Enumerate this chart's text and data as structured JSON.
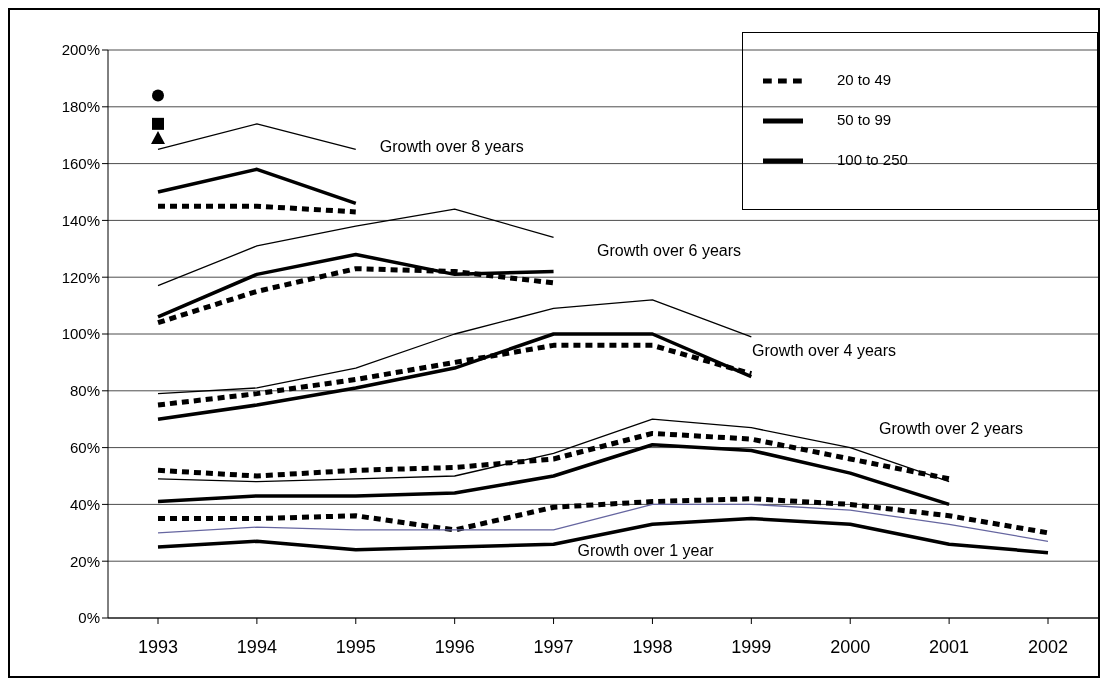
{
  "chart_data": {
    "type": "line",
    "categories": [
      "1993",
      "1994",
      "1995",
      "1996",
      "1997",
      "1998",
      "1999",
      "2000",
      "2001",
      "2002"
    ],
    "ylim": [
      0,
      200
    ],
    "yticks": [
      {
        "value": 0,
        "label": "0%"
      },
      {
        "value": 20,
        "label": "20%"
      },
      {
        "value": 40,
        "label": "40%"
      },
      {
        "value": 60,
        "label": "60%"
      },
      {
        "value": 80,
        "label": "80%"
      },
      {
        "value": 100,
        "label": "100%"
      },
      {
        "value": 120,
        "label": "120%"
      },
      {
        "value": 140,
        "label": "140%"
      },
      {
        "value": 160,
        "label": "160%"
      },
      {
        "value": 180,
        "label": "180%"
      },
      {
        "value": 200,
        "label": "200%"
      }
    ],
    "grid": "y",
    "legend": "top right",
    "marker": "none",
    "annotations": [
      {
        "text": "Growth over 8 years",
        "x": "1995",
        "y": 166
      },
      "Growth over 6 years",
      "Growth over 4 years",
      "Growth over 2 years",
      {
        "text": "Growth over 1 year",
        "x": "1997",
        "y": 24
      }
    ],
    "series": [
      {
        "name": "20 to 49",
        "color": "#000000",
        "line_style": "dotted",
        "values": [
          145,
          145,
          143,
          null,
          null,
          null,
          null,
          null,
          null,
          null
        ]
      },
      {
        "name": "50 to 99",
        "color": "#000000",
        "line_style": "solid",
        "values": [
          165,
          174,
          165,
          null,
          null,
          null,
          null,
          null,
          null,
          null
        ]
      },
      {
        "name": "100 to 250",
        "color": "#000000",
        "line_style": "solid",
        "values": [
          150,
          158,
          146,
          null,
          null,
          null,
          null,
          null,
          null,
          null
        ]
      },
      {
        "color": "#000000",
        "line_style": "dotted",
        "values": [
          104,
          115,
          123,
          122,
          118,
          null,
          null,
          null,
          null,
          null
        ]
      },
      {
        "color": "#000000",
        "line_style": "solid",
        "values": [
          117,
          131,
          138,
          144,
          134,
          null,
          null,
          null,
          null,
          null
        ]
      },
      {
        "color": "#000000",
        "line_style": "solid",
        "values": [
          106,
          121,
          128,
          121,
          122,
          null,
          null,
          null,
          null,
          null
        ]
      },
      {
        "color": "#000000",
        "line_style": "dotted",
        "values": [
          75,
          79,
          84,
          90,
          96,
          96,
          86,
          null,
          null,
          null
        ]
      },
      {
        "color": "#000000",
        "line_style": "solid",
        "values": [
          79,
          81,
          88,
          100,
          109,
          112,
          99,
          null,
          null,
          null
        ]
      },
      {
        "color": "#000000",
        "line_style": "solid",
        "values": [
          70,
          75,
          81,
          88,
          100,
          100,
          85,
          null,
          null,
          null
        ]
      },
      {
        "color": "#000000",
        "line_style": "dotted",
        "values": [
          52,
          50,
          52,
          53,
          56,
          65,
          63,
          56,
          49,
          null
        ]
      },
      {
        "color": "#000000",
        "line_style": "solid",
        "values": [
          49,
          48,
          49,
          50,
          58,
          70,
          67,
          60,
          48,
          null
        ]
      },
      {
        "color": "#000000",
        "line_style": "solid",
        "values": [
          41,
          43,
          43,
          44,
          50,
          61,
          59,
          51,
          40,
          null
        ]
      },
      {
        "color": "#000000",
        "line_style": "dotted",
        "values": [
          35,
          35,
          36,
          31,
          39,
          41,
          42,
          40,
          36,
          30
        ]
      },
      {
        "color": "#6666a0",
        "line_style": "solid",
        "values": [
          30,
          32,
          31,
          31,
          31,
          40,
          40,
          38,
          33,
          27
        ]
      },
      {
        "color": "#000000",
        "line_style": "solid",
        "values": [
          25,
          27,
          24,
          25,
          26,
          33,
          35,
          33,
          26,
          23
        ]
      },
      {
        "type": "scatter",
        "marker": "circle",
        "color": "#000000",
        "values": [
          184,
          null,
          null,
          null,
          null,
          null,
          null,
          null,
          null,
          null
        ]
      },
      {
        "type": "scatter",
        "marker": "square",
        "color": "#000000",
        "values": [
          174,
          null,
          null,
          null,
          null,
          null,
          null,
          null,
          null,
          null
        ]
      },
      {
        "type": "scatter",
        "marker": "triangle",
        "color": "#000000",
        "values": [
          169,
          null,
          null,
          null,
          null,
          null,
          null,
          null,
          null,
          null
        ]
      }
    ]
  }
}
